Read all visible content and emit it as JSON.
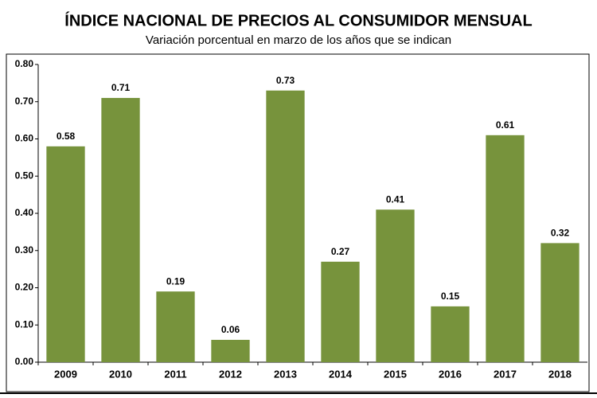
{
  "chart_data": {
    "type": "bar",
    "title": "ÍNDICE NACIONAL DE PRECIOS AL CONSUMIDOR MENSUAL",
    "subtitle": "Variación porcentual en marzo de los años que se indican",
    "categories": [
      "2009",
      "2010",
      "2011",
      "2012",
      "2013",
      "2014",
      "2015",
      "2016",
      "2017",
      "2018"
    ],
    "values": [
      0.58,
      0.71,
      0.19,
      0.06,
      0.73,
      0.27,
      0.41,
      0.15,
      0.61,
      0.32
    ],
    "color": "#77933c",
    "ylim": [
      0,
      0.8
    ],
    "yticks": [
      {
        "value": 0,
        "label": "0.00"
      },
      {
        "value": 0.1,
        "label": "0.10"
      },
      {
        "value": 0.2,
        "label": "0.20"
      },
      {
        "value": 0.3,
        "label": "0.30"
      },
      {
        "value": 0.4,
        "label": "0.40"
      },
      {
        "value": 0.5,
        "label": "0.50"
      },
      {
        "value": 0.6,
        "label": "0.60"
      },
      {
        "value": 0.7,
        "label": "0.70"
      },
      {
        "value": 0.8,
        "label": "0.80"
      }
    ],
    "grid": false
  }
}
